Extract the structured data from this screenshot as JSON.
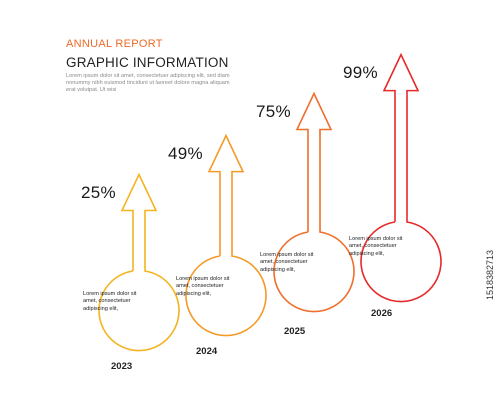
{
  "header": {
    "kicker": "ANNUAL REPORT",
    "title": "GRAPHIC INFORMATION",
    "intro": "Lorem ipsum dolor sit amet, consectetuer adipiscing elit, sed diam nonummy nibh euismod tincidunt ut laoreet dolore magna aliquam erat volutpat. Ut wisi"
  },
  "colors": {
    "s2023": "#f4b422",
    "s2024": "#f59a26",
    "s2025": "#ef6f2c",
    "s2026": "#e52a2a",
    "kicker": "#ee6a2a"
  },
  "chart_data": {
    "type": "bar",
    "categories": [
      "2023",
      "2024",
      "2025",
      "2026"
    ],
    "values": [
      25,
      49,
      75,
      99
    ],
    "value_labels": [
      "25%",
      "49%",
      "75%",
      "99%"
    ],
    "ylim": [
      0,
      100
    ],
    "notes": [
      "Lorem ipsum dolor sit amet, consectetuer adipiscing elit,",
      "Lorem ipsum dolor sit amet, consectetuer adipiscing elit,",
      "Lorem ipsum dolor sit amet, consectetuer adipiscing elit,",
      "Lorem ipsum dolor sit amet, consectetuer adipiscing elit,"
    ]
  },
  "watermark": {
    "stock_id": "1518382713"
  }
}
